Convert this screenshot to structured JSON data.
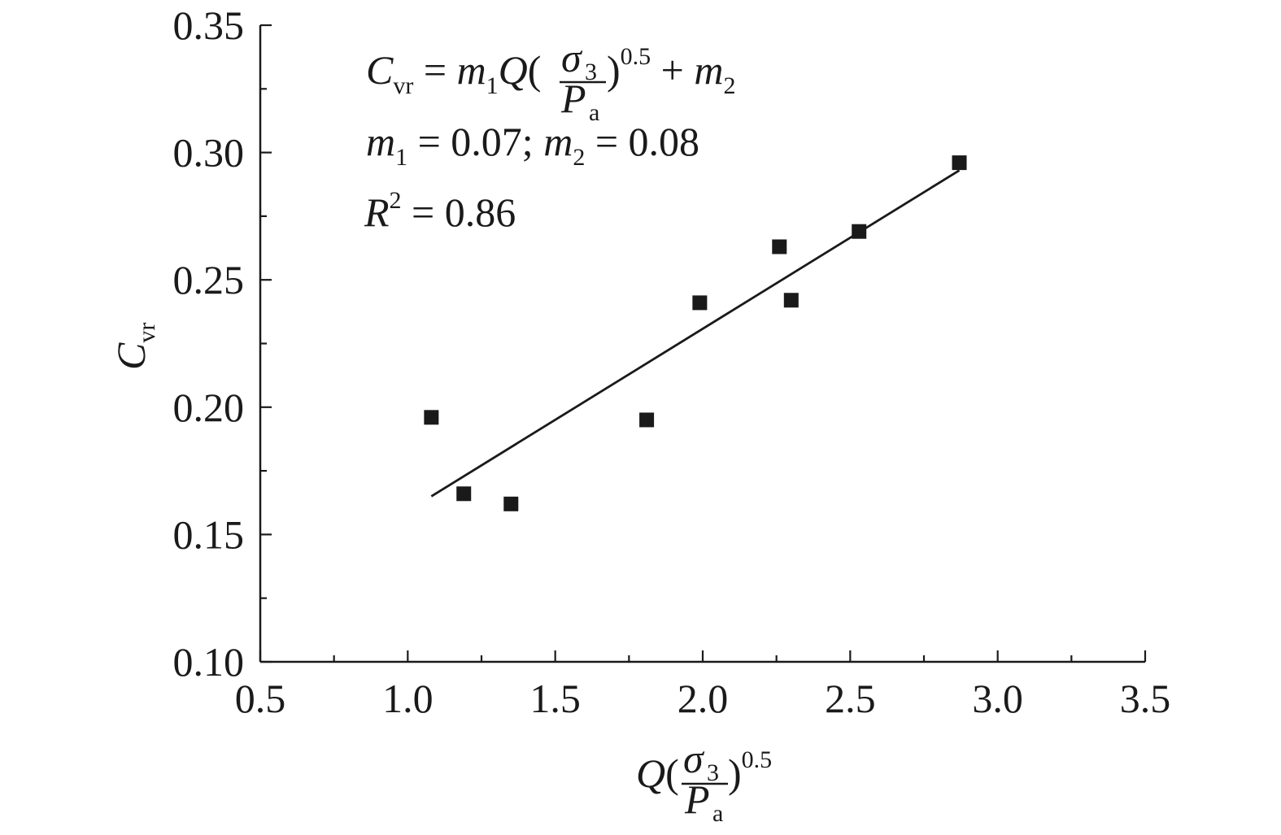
{
  "chart_data": {
    "type": "scatter",
    "xlabel": {
      "base": "Q",
      "open": "(",
      "numerator": "σ",
      "numerator_sub": "3",
      "denominator": "P",
      "denominator_sub": "a",
      "close": ")",
      "exponent": "0.5"
    },
    "ylabel": {
      "base": "C",
      "sub": "vr"
    },
    "xlim": [
      0.5,
      3.5
    ],
    "ylim": [
      0.1,
      0.35
    ],
    "x_ticks": [
      0.5,
      1.0,
      1.5,
      2.0,
      2.5,
      3.0,
      3.5
    ],
    "x_tick_labels": [
      "0.5",
      "1.0",
      "1.5",
      "2.0",
      "2.5",
      "3.0",
      "3.5"
    ],
    "y_ticks": [
      0.1,
      0.15,
      0.2,
      0.25,
      0.3,
      0.35
    ],
    "y_tick_labels": [
      "0.10",
      "0.15",
      "0.20",
      "0.25",
      "0.30",
      "0.35"
    ],
    "x_minor_step": 0.25,
    "y_minor_step": 0.025,
    "grid": false,
    "series": [
      {
        "marker": "square",
        "color": "#1a1a1a",
        "x": [
          1.08,
          1.19,
          1.35,
          1.81,
          1.99,
          2.26,
          2.3,
          2.53,
          2.87
        ],
        "y": [
          0.196,
          0.166,
          0.162,
          0.195,
          0.241,
          0.263,
          0.242,
          0.269,
          0.296
        ]
      }
    ],
    "fit_line": {
      "x": [
        1.08,
        2.87
      ],
      "y": [
        0.165,
        0.293
      ],
      "color": "#1a1a1a"
    },
    "annotations": {
      "equation": {
        "lhs_base": "C",
        "lhs_sub": "vr",
        "eq": " = ",
        "m1_base": "m",
        "m1_sub": "1",
        "q": "Q",
        "open": "(",
        "numerator": "σ",
        "numerator_sub": "3",
        "denominator": "P",
        "denominator_sub": "a",
        "close": ")",
        "exponent": "0.5",
        "plus": " + ",
        "m2_base": "m",
        "m2_sub": "2"
      },
      "params": {
        "m1_base": "m",
        "m1_sub": "1",
        "m1_value": " = 0.07; ",
        "m2_base": "m",
        "m2_sub": "2",
        "m2_value": " = 0.08"
      },
      "r2": {
        "base": "R",
        "sup": "2",
        "value": " = 0.86"
      }
    }
  }
}
